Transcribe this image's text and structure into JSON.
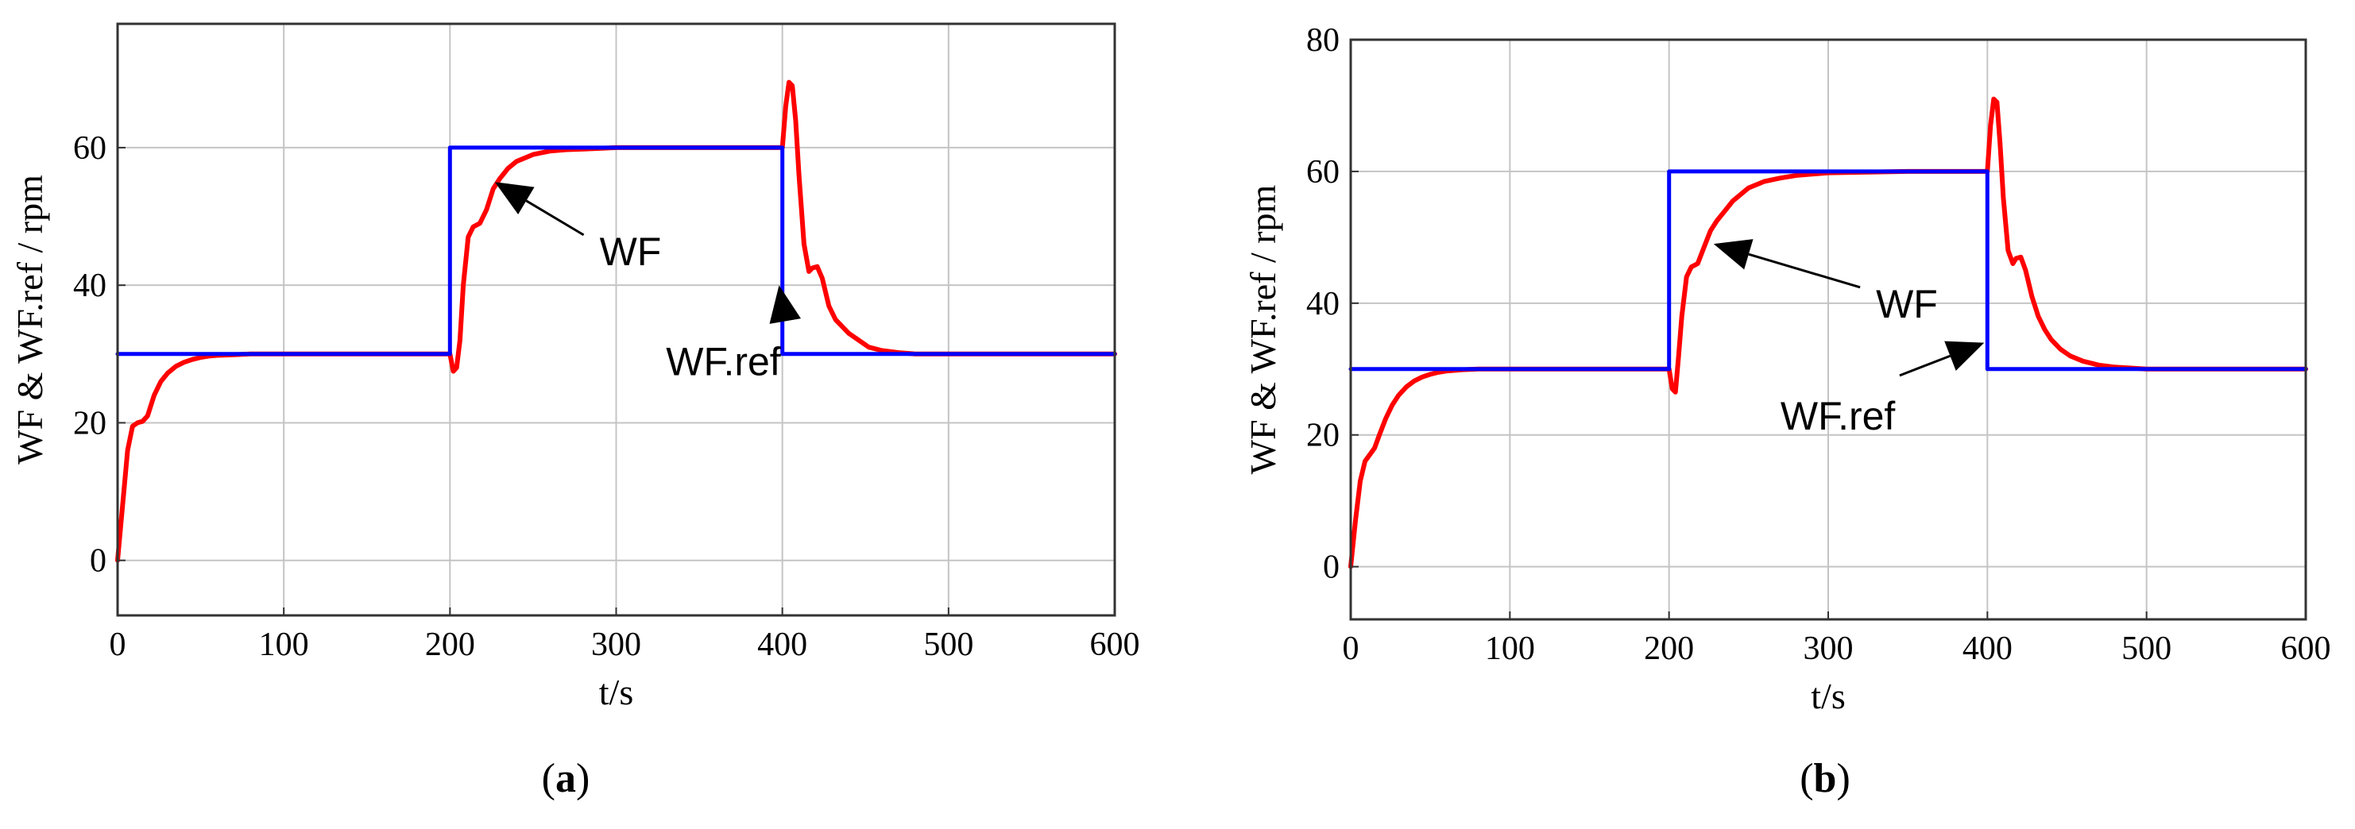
{
  "chart_data": [
    {
      "type": "line",
      "caption": "a",
      "xlabel": "t/s",
      "ylabel": "WF & WF.ref / rpm",
      "xlim": [
        0,
        600
      ],
      "ylim": [
        -8,
        78
      ],
      "xticks": [
        0,
        100,
        200,
        300,
        400,
        500,
        600
      ],
      "yticks": [
        0,
        20,
        40,
        60
      ],
      "grid": true,
      "series": [
        {
          "name": "WF",
          "color": "#ff0000",
          "x": [
            0,
            3,
            6,
            9,
            12,
            15,
            18,
            22,
            26,
            30,
            35,
            40,
            45,
            50,
            55,
            60,
            70,
            80,
            100,
            200,
            202,
            204,
            206,
            208,
            211,
            214,
            218,
            222,
            226,
            230,
            235,
            240,
            250,
            260,
            270,
            280,
            300,
            350,
            400,
            402,
            404,
            406,
            408,
            410,
            413,
            416,
            418,
            421,
            424,
            428,
            432,
            436,
            440,
            446,
            452,
            460,
            470,
            480,
            500,
            520,
            600
          ],
          "y": [
            0,
            8,
            16,
            19.5,
            20,
            20.2,
            21,
            24,
            26,
            27.2,
            28.2,
            28.8,
            29.2,
            29.5,
            29.7,
            29.8,
            29.9,
            30,
            30,
            30,
            27.5,
            28,
            32,
            40,
            47,
            48.5,
            49,
            51,
            54,
            55.5,
            57,
            58,
            59,
            59.5,
            59.7,
            59.8,
            60,
            60,
            60,
            66,
            69.5,
            69,
            64,
            56,
            46,
            42,
            42.5,
            42.7,
            41,
            37,
            35,
            34,
            33,
            32,
            31,
            30.5,
            30.2,
            30,
            30,
            30,
            30
          ]
        },
        {
          "name": "WF.ref",
          "color": "#0000ff",
          "x": [
            0,
            200,
            200,
            400,
            400,
            600
          ],
          "y": [
            30,
            30,
            60,
            60,
            30,
            30
          ]
        }
      ],
      "annotations": [
        {
          "text": "WF",
          "target": [
            227,
            55
          ],
          "label_at": [
            290,
            45
          ]
        },
        {
          "text": "WF.ref",
          "target": [
            398,
            40
          ],
          "label_at": [
            330,
            29
          ]
        }
      ]
    },
    {
      "type": "line",
      "caption": "b",
      "xlabel": "t/s",
      "ylabel": "WF & WF.ref / rpm",
      "xlim": [
        0,
        600
      ],
      "ylim": [
        -8,
        80
      ],
      "xticks": [
        0,
        100,
        200,
        300,
        400,
        500,
        600
      ],
      "yticks": [
        0,
        20,
        40,
        60,
        80
      ],
      "grid": true,
      "series": [
        {
          "name": "WF",
          "color": "#ff0000",
          "x": [
            0,
            3,
            6,
            9,
            12,
            15,
            18,
            22,
            26,
            30,
            35,
            40,
            45,
            50,
            55,
            60,
            70,
            80,
            100,
            200,
            202,
            204,
            206,
            208,
            211,
            214,
            218,
            222,
            226,
            230,
            235,
            240,
            250,
            260,
            270,
            280,
            300,
            350,
            400,
            402,
            404,
            406,
            408,
            410,
            413,
            416,
            418,
            421,
            424,
            428,
            432,
            436,
            440,
            446,
            452,
            460,
            470,
            480,
            500,
            520,
            600
          ],
          "y": [
            0,
            7,
            13,
            16,
            17,
            18,
            20,
            22.5,
            24.5,
            26,
            27.3,
            28.2,
            28.8,
            29.2,
            29.5,
            29.7,
            29.9,
            30,
            30,
            30,
            27,
            26.5,
            32,
            38,
            44,
            45.5,
            46,
            48.5,
            51,
            52.5,
            54,
            55.5,
            57.5,
            58.5,
            59,
            59.4,
            59.8,
            60,
            60,
            67,
            71,
            70.5,
            64,
            56,
            48,
            46,
            46.8,
            47,
            45,
            41,
            38,
            36,
            34.5,
            33,
            32,
            31.2,
            30.6,
            30.3,
            30,
            30,
            30
          ]
        },
        {
          "name": "WF.ref",
          "color": "#0000ff",
          "x": [
            0,
            200,
            200,
            400,
            400,
            600
          ],
          "y": [
            30,
            30,
            60,
            60,
            30,
            30
          ]
        }
      ],
      "annotations": [
        {
          "text": "WF",
          "target": [
            228,
            49
          ],
          "label_at": [
            330,
            40
          ]
        },
        {
          "text": "WF.ref",
          "target": [
            398,
            34
          ],
          "label_at": [
            270,
            23
          ]
        }
      ]
    }
  ]
}
